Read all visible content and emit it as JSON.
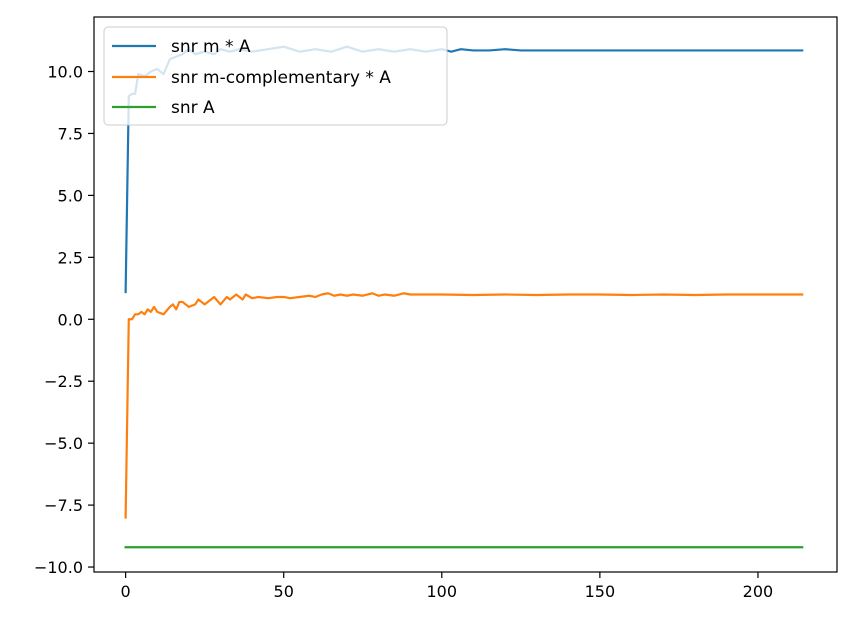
{
  "chart_data": {
    "type": "line",
    "title": "",
    "xlabel": "",
    "ylabel": "",
    "xlim": [
      -10,
      225
    ],
    "ylim": [
      -10.2,
      12.2
    ],
    "grid": false,
    "legend_position": "top-left",
    "x_ticks": [
      {
        "value": 0,
        "label": "0"
      },
      {
        "value": 50,
        "label": "50"
      },
      {
        "value": 100,
        "label": "100"
      },
      {
        "value": 150,
        "label": "150"
      },
      {
        "value": 200,
        "label": "200"
      }
    ],
    "y_ticks": [
      {
        "value": -10.0,
        "label": "−10.0"
      },
      {
        "value": -7.5,
        "label": "−7.5"
      },
      {
        "value": -5.0,
        "label": "−5.0"
      },
      {
        "value": -2.5,
        "label": "−2.5"
      },
      {
        "value": 0.0,
        "label": "0.0"
      },
      {
        "value": 2.5,
        "label": "2.5"
      },
      {
        "value": 5.0,
        "label": "5.0"
      },
      {
        "value": 7.5,
        "label": "7.5"
      },
      {
        "value": 10.0,
        "label": "10.0"
      }
    ],
    "series": [
      {
        "name": "snr m * A",
        "color": "#1f77b4",
        "x": [
          0,
          1,
          2,
          3,
          4,
          6,
          8,
          10,
          12,
          14,
          16,
          18,
          20,
          22,
          25,
          28,
          30,
          33,
          36,
          40,
          45,
          50,
          55,
          60,
          65,
          70,
          75,
          80,
          85,
          90,
          95,
          100,
          103,
          106,
          110,
          115,
          120,
          125,
          130,
          140,
          150,
          160,
          170,
          180,
          190,
          200,
          214
        ],
        "y": [
          1.1,
          9.0,
          9.1,
          9.1,
          9.9,
          9.8,
          10.0,
          10.1,
          9.9,
          10.5,
          10.6,
          10.7,
          10.9,
          10.7,
          10.8,
          10.7,
          10.9,
          10.8,
          10.9,
          10.8,
          10.9,
          11.0,
          10.8,
          10.9,
          10.8,
          11.0,
          10.8,
          10.9,
          10.8,
          10.9,
          10.8,
          10.9,
          10.8,
          10.9,
          10.85,
          10.85,
          10.9,
          10.85,
          10.85,
          10.85,
          10.85,
          10.85,
          10.85,
          10.85,
          10.85,
          10.85,
          10.85
        ]
      },
      {
        "name": "snr m-complementary * A",
        "color": "#ff7f0e",
        "x": [
          0,
          1,
          2,
          3,
          4,
          5,
          6,
          7,
          8,
          9,
          10,
          12,
          14,
          15,
          16,
          17,
          18,
          20,
          22,
          23,
          25,
          27,
          28,
          30,
          32,
          33,
          35,
          36,
          37,
          38,
          40,
          42,
          45,
          48,
          50,
          52,
          55,
          58,
          60,
          62,
          64,
          66,
          68,
          70,
          72,
          75,
          78,
          80,
          82,
          85,
          88,
          90,
          95,
          100,
          110,
          120,
          130,
          140,
          150,
          160,
          170,
          180,
          190,
          200,
          214
        ],
        "y": [
          -8.0,
          0.0,
          0.0,
          0.2,
          0.2,
          0.3,
          0.2,
          0.4,
          0.3,
          0.5,
          0.3,
          0.2,
          0.5,
          0.6,
          0.4,
          0.7,
          0.7,
          0.5,
          0.6,
          0.8,
          0.6,
          0.8,
          0.9,
          0.6,
          0.9,
          0.8,
          1.0,
          0.9,
          0.8,
          1.0,
          0.85,
          0.9,
          0.85,
          0.9,
          0.9,
          0.85,
          0.9,
          0.95,
          0.9,
          1.0,
          1.05,
          0.95,
          1.0,
          0.95,
          1.0,
          0.95,
          1.05,
          0.95,
          1.0,
          0.95,
          1.05,
          1.0,
          1.0,
          1.0,
          0.98,
          1.0,
          0.98,
          1.0,
          1.0,
          0.98,
          1.0,
          0.98,
          1.0,
          1.0,
          1.0
        ]
      },
      {
        "name": "snr A",
        "color": "#2ca02c",
        "x": [
          0,
          214
        ],
        "y": [
          -9.2,
          -9.2
        ]
      }
    ]
  }
}
